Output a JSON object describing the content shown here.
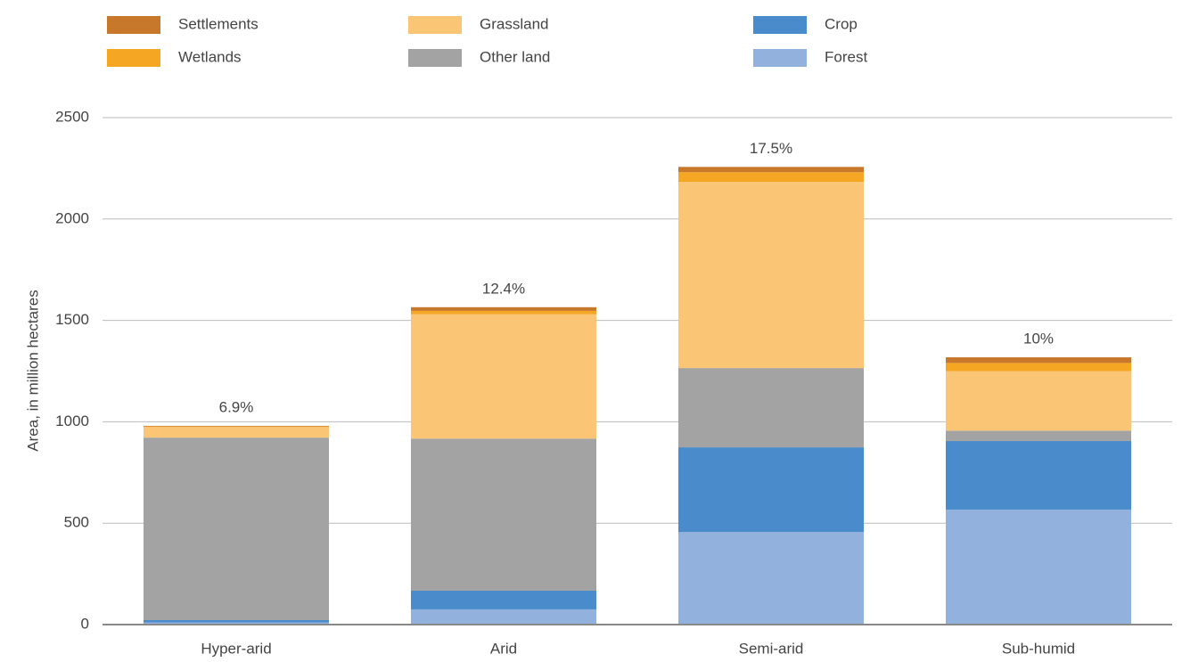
{
  "chart_data": {
    "type": "stacked_bar",
    "y_label": "Area, in million hectares",
    "categories": [
      "Hyper-arid",
      "Arid",
      "Semi-arid",
      "Sub-humid"
    ],
    "series": [
      {
        "name": "Forest",
        "color": "#92b1dc",
        "values": [
          10,
          75,
          457,
          567
        ]
      },
      {
        "name": "Crop",
        "color": "#4a8ccb",
        "values": [
          12,
          92,
          417,
          338
        ]
      },
      {
        "name": "Other land",
        "color": "#a3a3a3",
        "values": [
          900,
          750,
          391,
          51
        ]
      },
      {
        "name": "Grassland",
        "color": "#fbc576",
        "values": [
          52,
          613,
          918,
          294
        ]
      },
      {
        "name": "Wetlands",
        "color": "#f5a623",
        "values": [
          3,
          17,
          48,
          40
        ]
      },
      {
        "name": "Settlements",
        "color": "#c8782a",
        "values": [
          3,
          18,
          26,
          28
        ]
      }
    ],
    "annotations": [
      "6.9%",
      "12.4%",
      "17.5%",
      "10%"
    ],
    "ylim": [
      0,
      2500
    ],
    "yticks": [
      0,
      500,
      1000,
      1500,
      2000,
      2500
    ],
    "grid": true
  }
}
